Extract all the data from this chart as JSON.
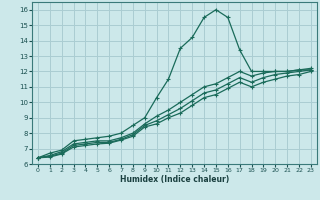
{
  "xlabel": "Humidex (Indice chaleur)",
  "xlim": [
    -0.5,
    23.5
  ],
  "ylim": [
    6,
    16.5
  ],
  "bg_color": "#cce8ea",
  "grid_color": "#aacdd2",
  "line_color": "#1a6b5a",
  "xticks": [
    0,
    1,
    2,
    3,
    4,
    5,
    6,
    7,
    8,
    9,
    10,
    11,
    12,
    13,
    14,
    15,
    16,
    17,
    18,
    19,
    20,
    21,
    22,
    23
  ],
  "yticks": [
    6,
    7,
    8,
    9,
    10,
    11,
    12,
    13,
    14,
    15,
    16
  ],
  "series": [
    {
      "x": [
        0,
        1,
        2,
        3,
        4,
        5,
        6,
        7,
        8,
        9,
        10,
        11,
        12,
        13,
        14,
        15,
        16,
        17,
        18,
        19,
        20,
        21,
        22,
        23
      ],
      "y": [
        6.4,
        6.7,
        6.9,
        7.5,
        7.6,
        7.7,
        7.8,
        8.0,
        8.5,
        9.0,
        10.3,
        11.5,
        13.5,
        14.2,
        15.5,
        16.0,
        15.5,
        13.4,
        12.0,
        12.0,
        12.0,
        12.0,
        12.1,
        12.1
      ]
    },
    {
      "x": [
        0,
        1,
        2,
        3,
        4,
        5,
        6,
        7,
        8,
        9,
        10,
        11,
        12,
        13,
        14,
        15,
        16,
        17,
        18,
        19,
        20,
        21,
        22,
        23
      ],
      "y": [
        6.4,
        6.55,
        6.8,
        7.3,
        7.4,
        7.5,
        7.5,
        7.7,
        8.0,
        8.6,
        9.1,
        9.5,
        10.0,
        10.5,
        11.0,
        11.2,
        11.6,
        12.0,
        11.7,
        11.9,
        12.0,
        12.0,
        12.1,
        12.2
      ]
    },
    {
      "x": [
        0,
        1,
        2,
        3,
        4,
        5,
        6,
        7,
        8,
        9,
        10,
        11,
        12,
        13,
        14,
        15,
        16,
        17,
        18,
        19,
        20,
        21,
        22,
        23
      ],
      "y": [
        6.4,
        6.5,
        6.7,
        7.2,
        7.3,
        7.4,
        7.4,
        7.6,
        7.9,
        8.5,
        8.8,
        9.2,
        9.6,
        10.1,
        10.6,
        10.8,
        11.2,
        11.6,
        11.3,
        11.6,
        11.8,
        11.9,
        12.0,
        12.1
      ]
    },
    {
      "x": [
        0,
        1,
        2,
        3,
        4,
        5,
        6,
        7,
        8,
        9,
        10,
        11,
        12,
        13,
        14,
        15,
        16,
        17,
        18,
        19,
        20,
        21,
        22,
        23
      ],
      "y": [
        6.4,
        6.45,
        6.65,
        7.1,
        7.2,
        7.3,
        7.35,
        7.55,
        7.8,
        8.4,
        8.6,
        9.0,
        9.3,
        9.8,
        10.3,
        10.5,
        10.9,
        11.3,
        11.0,
        11.3,
        11.5,
        11.7,
        11.8,
        12.0
      ]
    }
  ]
}
